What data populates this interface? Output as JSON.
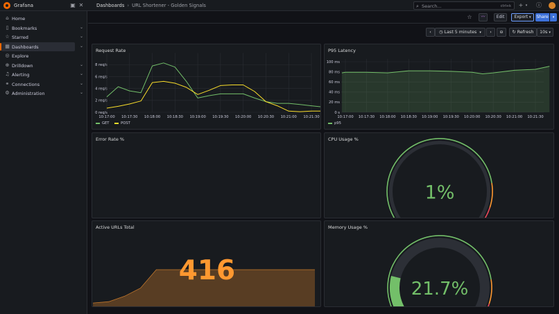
{
  "app": {
    "brand": "Grafana"
  },
  "topbar": {
    "breadcrumbs": [
      "Dashboards",
      "URL Shortener - Golden Signals"
    ],
    "search_placeholder": "Search...",
    "search_shortcut": "ctrl+k",
    "plus_label": "+"
  },
  "sidebar": {
    "items": [
      {
        "label": "Home",
        "icon": "home-icon",
        "glyph": "⌂",
        "expandable": false
      },
      {
        "label": "Bookmarks",
        "icon": "bookmark-icon",
        "glyph": "▯",
        "expandable": true
      },
      {
        "label": "Starred",
        "icon": "star-icon",
        "glyph": "☆",
        "expandable": true
      },
      {
        "label": "Dashboards",
        "icon": "dashboards-icon",
        "glyph": "▦",
        "expandable": true,
        "active": true
      },
      {
        "label": "Explore",
        "icon": "compass-icon",
        "glyph": "◎",
        "expandable": false
      },
      {
        "label": "Drilldown",
        "icon": "drilldown-icon",
        "glyph": "⊕",
        "expandable": true
      },
      {
        "label": "Alerting",
        "icon": "bell-icon",
        "glyph": "♫",
        "expandable": true
      },
      {
        "label": "Connections",
        "icon": "connections-icon",
        "glyph": "⚭",
        "expandable": true
      },
      {
        "label": "Administration",
        "icon": "gear-icon",
        "glyph": "⚙",
        "expandable": true
      }
    ]
  },
  "toolbar": {
    "edit_label": "Edit",
    "export_label": "Export",
    "share_label": "Share",
    "time_range": "Last 5 minutes",
    "refresh_label": "Refresh",
    "refresh_interval": "10s"
  },
  "panels": {
    "request_rate": {
      "title": "Request Rate"
    },
    "p95_latency": {
      "title": "P95 Latency"
    },
    "error_rate": {
      "title": "Error Rate %"
    },
    "cpu_usage": {
      "title": "CPU Usage %"
    },
    "active_urls": {
      "title": "Active URLs Total"
    },
    "memory_usage": {
      "title": "Memory Usage %"
    }
  },
  "colors": {
    "get": "#73bf69",
    "post": "#fade2a",
    "p95": "#73bf69",
    "stat": "#ff9830",
    "gauge": "#73bf69",
    "threshold_orange": "#ff9830",
    "threshold_red": "#f2495c"
  },
  "chart_data": [
    {
      "type": "line",
      "title": "Request Rate",
      "x": [
        "10:17:00",
        "10:17:15",
        "10:17:30",
        "10:17:45",
        "10:18:00",
        "10:18:15",
        "10:18:30",
        "10:18:45",
        "10:19:00",
        "10:19:15",
        "10:19:30",
        "10:19:45",
        "10:20:00",
        "10:20:15",
        "10:20:30",
        "10:20:45",
        "10:21:00",
        "10:21:15",
        "10:21:30",
        "10:21:45"
      ],
      "x_ticks": [
        "10:17:00",
        "10:17:30",
        "10:18:00",
        "10:18:30",
        "10:19:00",
        "10:19:30",
        "10:20:00",
        "10:20:30",
        "10:21:00",
        "10:21:30"
      ],
      "y_ticks": [
        "0 req/s",
        "2 req/s",
        "4 req/s",
        "6 req/s",
        "8 req/s"
      ],
      "ylim": [
        0,
        9.5
      ],
      "series": [
        {
          "name": "GET",
          "values": [
            2.6,
            4.3,
            3.6,
            3.3,
            7.8,
            8.3,
            7.6,
            5.2,
            2.4,
            2.8,
            3.1,
            3.1,
            3.1,
            2.4,
            1.8,
            1.5,
            1.5,
            1.3,
            1.1,
            0.9
          ]
        },
        {
          "name": "POST",
          "values": [
            0.7,
            1.0,
            1.4,
            1.9,
            5.0,
            5.2,
            4.9,
            4.2,
            3.0,
            3.7,
            4.5,
            4.6,
            4.6,
            3.5,
            1.8,
            1.1,
            0.2,
            0.1,
            0.2,
            0.2
          ]
        }
      ]
    },
    {
      "type": "area",
      "title": "P95 Latency",
      "x": [
        "10:16:55",
        "10:17:00",
        "10:17:30",
        "10:18:00",
        "10:18:30",
        "10:19:00",
        "10:19:30",
        "10:20:00",
        "10:20:15",
        "10:20:30",
        "10:21:00",
        "10:21:30",
        "10:21:50"
      ],
      "x_ticks": [
        "10:17:00",
        "10:17:30",
        "10:18:00",
        "10:18:30",
        "10:19:00",
        "10:19:30",
        "10:20:00",
        "10:20:30",
        "10:21:00",
        "10:21:30"
      ],
      "y_ticks": [
        "0 s",
        "20 ms",
        "40 ms",
        "60 ms",
        "80 ms",
        "100 ms"
      ],
      "ylim": [
        0,
        100
      ],
      "series": [
        {
          "name": "p95",
          "values": [
            78,
            79,
            79,
            78,
            82,
            82,
            81,
            79,
            76,
            78,
            83,
            85,
            91
          ]
        }
      ]
    },
    {
      "type": "gauge",
      "title": "CPU Usage %",
      "value": 1,
      "value_label": "1%",
      "min": 0,
      "max": 100,
      "thresholds": [
        {
          "from": 0,
          "color": "#73bf69"
        },
        {
          "from": 80,
          "color": "#ff9830"
        },
        {
          "from": 90,
          "color": "#f2495c"
        }
      ]
    },
    {
      "type": "area",
      "title": "Active URLs Total",
      "value_label": "416",
      "series": [
        {
          "name": "urls",
          "values": [
            30,
            40,
            80,
            140,
            300,
            360,
            390,
            400,
            405,
            410,
            410,
            412,
            414,
            416,
            416
          ]
        }
      ],
      "ylim": [
        0,
        600
      ]
    },
    {
      "type": "gauge",
      "title": "Memory Usage %",
      "value": 21.7,
      "value_label": "21.7%",
      "min": 0,
      "max": 100,
      "thresholds": [
        {
          "from": 0,
          "color": "#73bf69"
        },
        {
          "from": 80,
          "color": "#ff9830"
        },
        {
          "from": 90,
          "color": "#f2495c"
        }
      ]
    }
  ]
}
